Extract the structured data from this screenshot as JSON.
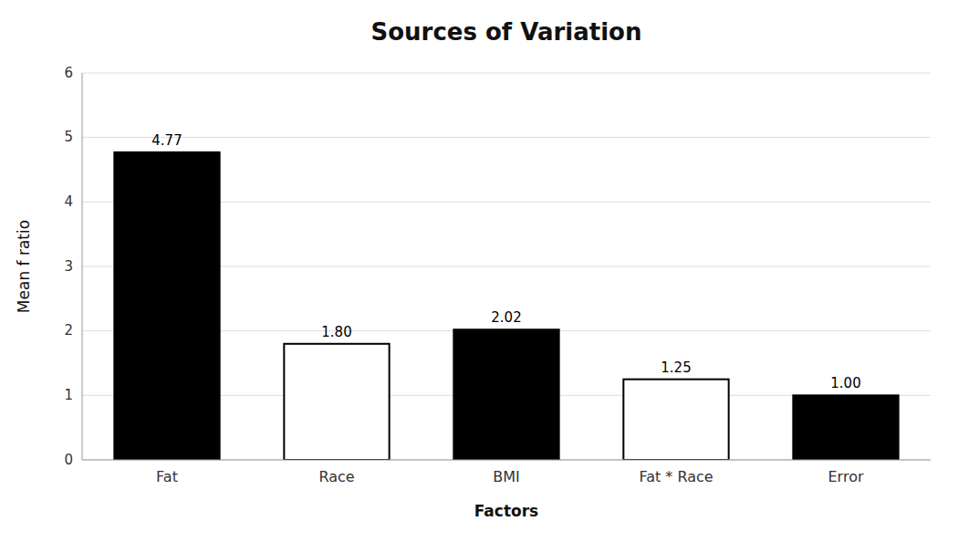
{
  "chart_data": {
    "type": "bar",
    "title": "Sources of Variation",
    "x_label": "Factors",
    "y_label": "Mean f ratio",
    "categories": [
      "Fat",
      "Race",
      "BMI",
      "Fat * Race",
      "Error"
    ],
    "values": [
      4.77,
      1.8,
      2.02,
      1.25,
      1.0
    ],
    "value_labels": [
      "4.77",
      "1.80",
      "2.02",
      "1.25",
      "1.00"
    ],
    "colors": [
      "#000000",
      "#ffffff",
      "#000000",
      "#ffffff",
      "#000000"
    ],
    "ylim": [
      0,
      6
    ],
    "yticks": [
      0,
      1,
      2,
      3,
      4,
      5,
      6
    ],
    "grid": true,
    "data_labels": true
  }
}
